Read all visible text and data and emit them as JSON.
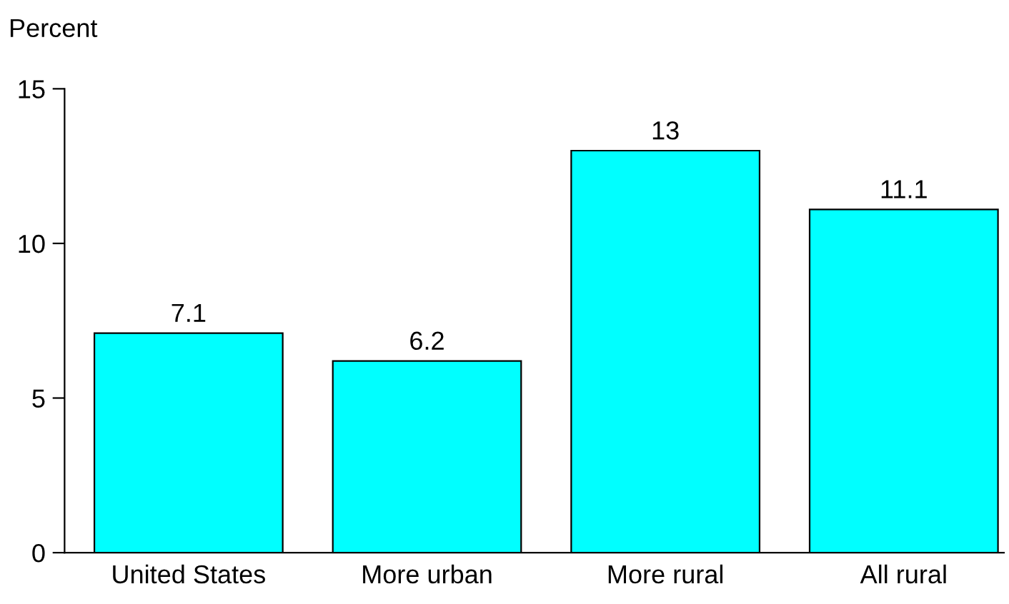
{
  "chart_data": {
    "type": "bar",
    "ylabel": "Percent",
    "categories": [
      "United States",
      "More urban",
      "More rural",
      "All rural"
    ],
    "values": [
      7.1,
      6.2,
      13,
      11.1
    ],
    "color": "#00ffff",
    "ylim": [
      0,
      15
    ],
    "yticks": [
      0,
      5,
      10,
      15
    ],
    "grid": false,
    "data_labels": true
  }
}
